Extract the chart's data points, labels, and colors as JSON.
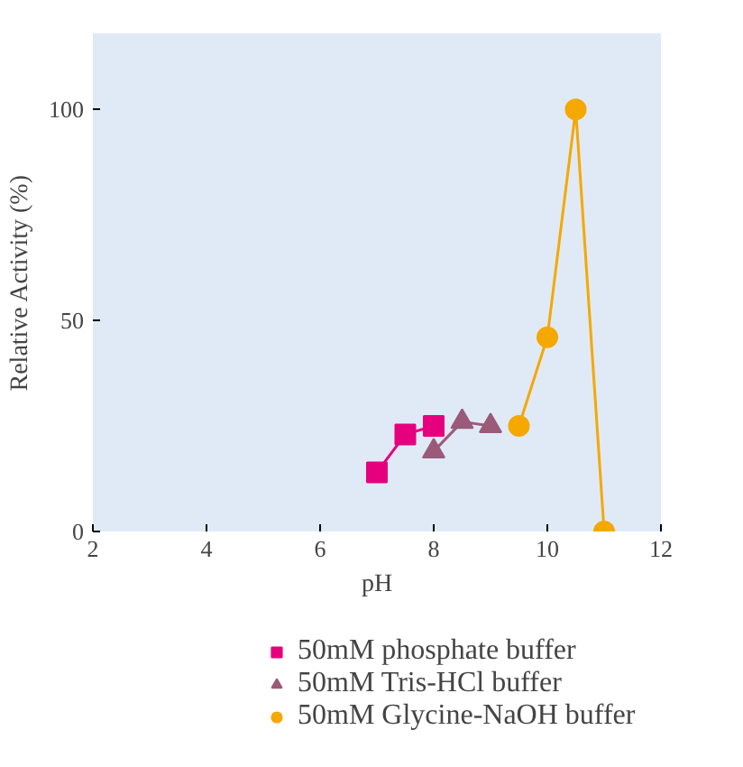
{
  "chart_data": {
    "type": "line",
    "xlabel": "pH",
    "ylabel": "Relative Activity (%)",
    "xlim": [
      2,
      12
    ],
    "ylim": [
      0,
      118
    ],
    "xticks": [
      2,
      4,
      6,
      8,
      10,
      12
    ],
    "yticks": [
      0,
      50,
      100
    ],
    "grid": false,
    "legend": "bottom",
    "line_style": "solid",
    "series": [
      {
        "name": "50mM phosphate buffer",
        "color": "#e6007e",
        "marker": "square",
        "x": [
          7,
          7.5,
          8
        ],
        "values": [
          14,
          23,
          25
        ]
      },
      {
        "name": "50mM Tris-HCl buffer",
        "color": "#9b5a7a",
        "marker": "triangle",
        "x": [
          8,
          8.5,
          9
        ],
        "values": [
          19,
          26,
          25
        ]
      },
      {
        "name": "50mM Glycine-NaOH buffer",
        "color": "#f5a800",
        "marker": "circle",
        "x": [
          9.5,
          10,
          10.5,
          11
        ],
        "values": [
          25,
          46,
          100,
          0
        ]
      }
    ]
  }
}
